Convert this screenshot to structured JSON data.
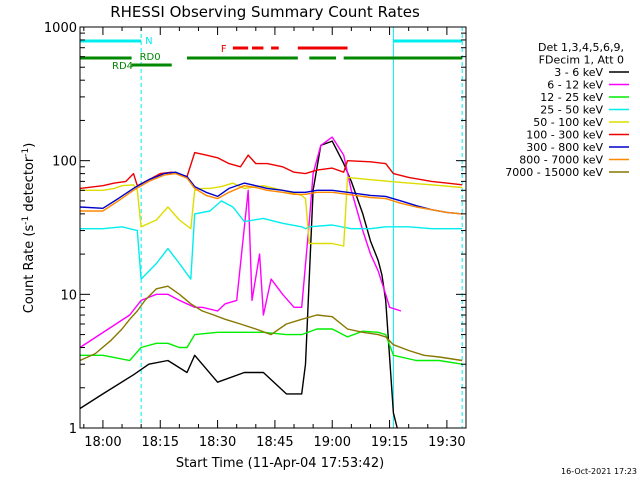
{
  "chart_data": {
    "type": "line",
    "title": "RHESSI Observing Summary Count Rates",
    "xlabel": "Start Time (11-Apr-04 17:53:42)",
    "ylabel_main": "Count Rate (s",
    "ylabel_sup1": "-1",
    "ylabel_mid": " detector",
    "ylabel_sup2": "-1",
    "ylabel_end": ")",
    "y_log": true,
    "xlim_minutes": [
      -6,
      95
    ],
    "ylim": [
      1,
      1000
    ],
    "x_ticks": [
      {
        "m": 0,
        "label": "18:00"
      },
      {
        "m": 15,
        "label": "18:15"
      },
      {
        "m": 30,
        "label": "18:30"
      },
      {
        "m": 45,
        "label": "18:45"
      },
      {
        "m": 60,
        "label": "19:00"
      },
      {
        "m": 75,
        "label": "19:15"
      },
      {
        "m": 90,
        "label": "19:30"
      }
    ],
    "y_ticks": [
      {
        "v": 1,
        "label": "1"
      },
      {
        "v": 10,
        "label": "10"
      },
      {
        "v": 100,
        "label": "100"
      },
      {
        "v": 1000,
        "label": "1000"
      }
    ],
    "legend_header": [
      "Det 1,3,4,5,6,9,",
      "FDecim 1, Att 0"
    ],
    "legend_placement": "right",
    "series": [
      {
        "name": "3 - 6 keV",
        "color": "#000000",
        "points": [
          [
            -6,
            1.4
          ],
          [
            0,
            1.8
          ],
          [
            8,
            2.5
          ],
          [
            12,
            3.0
          ],
          [
            17,
            3.2
          ],
          [
            22,
            2.6
          ],
          [
            24,
            3.5
          ],
          [
            30,
            2.2
          ],
          [
            37,
            2.6
          ],
          [
            42,
            2.6
          ],
          [
            48,
            1.8
          ],
          [
            52,
            1.8
          ],
          [
            53,
            3
          ],
          [
            55,
            60
          ],
          [
            57,
            130
          ],
          [
            60,
            140
          ],
          [
            63,
            95
          ],
          [
            65,
            70
          ],
          [
            68,
            40
          ],
          [
            70,
            25
          ],
          [
            72,
            18
          ],
          [
            73,
            14
          ],
          [
            74,
            9
          ],
          [
            76,
            1.3
          ],
          [
            77,
            1
          ]
        ]
      },
      {
        "name": "6 - 12 keV",
        "color": "#ff00ff",
        "points": [
          [
            -6,
            4
          ],
          [
            7,
            7
          ],
          [
            10,
            9
          ],
          [
            14,
            10
          ],
          [
            17,
            10
          ],
          [
            20,
            9
          ],
          [
            22,
            8.5
          ],
          [
            24,
            8
          ],
          [
            26,
            8
          ],
          [
            30,
            7.5
          ],
          [
            32,
            8.5
          ],
          [
            35,
            9
          ],
          [
            38,
            60
          ],
          [
            39,
            9
          ],
          [
            41,
            20
          ],
          [
            42,
            7
          ],
          [
            44,
            13
          ],
          [
            47,
            10
          ],
          [
            50,
            8
          ],
          [
            52,
            8
          ],
          [
            54,
            35
          ],
          [
            55,
            80
          ],
          [
            57,
            130
          ],
          [
            60,
            150
          ],
          [
            63,
            110
          ],
          [
            65,
            60
          ],
          [
            68,
            30
          ],
          [
            70,
            20
          ],
          [
            72,
            15
          ],
          [
            74,
            10
          ],
          [
            75,
            8
          ],
          [
            78,
            7.5
          ]
        ]
      },
      {
        "name": "12 - 25 keV",
        "color": "#00ee00",
        "points": [
          [
            -6,
            3.5
          ],
          [
            0,
            3.5
          ],
          [
            7,
            3.2
          ],
          [
            10,
            4.0
          ],
          [
            14,
            4.3
          ],
          [
            17,
            4.3
          ],
          [
            20,
            4.0
          ],
          [
            22,
            4.0
          ],
          [
            24,
            5
          ],
          [
            30,
            5.2
          ],
          [
            36,
            5.2
          ],
          [
            42,
            5.2
          ],
          [
            48,
            5.0
          ],
          [
            52,
            5.0
          ],
          [
            56,
            5.5
          ],
          [
            60,
            5.5
          ],
          [
            64,
            4.8
          ],
          [
            68,
            5.3
          ],
          [
            72,
            5.2
          ],
          [
            74,
            5.0
          ],
          [
            76,
            3.5
          ],
          [
            82,
            3.2
          ],
          [
            88,
            3.2
          ],
          [
            94,
            3.0
          ]
        ]
      },
      {
        "name": "25 - 50 keV",
        "color": "#00eeee",
        "points": [
          [
            -6,
            31
          ],
          [
            0,
            31
          ],
          [
            5,
            32
          ],
          [
            9,
            30
          ],
          [
            10,
            13
          ],
          [
            14,
            17
          ],
          [
            17,
            22
          ],
          [
            20,
            17
          ],
          [
            23,
            13
          ],
          [
            24,
            40
          ],
          [
            28,
            42
          ],
          [
            31,
            50
          ],
          [
            34,
            45
          ],
          [
            37,
            35
          ],
          [
            42,
            37
          ],
          [
            47,
            34
          ],
          [
            52,
            32
          ],
          [
            53,
            31
          ],
          [
            54,
            32
          ],
          [
            60,
            33
          ],
          [
            65,
            31
          ],
          [
            70,
            31
          ],
          [
            74,
            32
          ],
          [
            80,
            32
          ],
          [
            86,
            31
          ],
          [
            94,
            31
          ]
        ]
      },
      {
        "name": "50 - 100 keV",
        "color": "#dddd00",
        "points": [
          [
            -6,
            60
          ],
          [
            0,
            60
          ],
          [
            3,
            62
          ],
          [
            5,
            65
          ],
          [
            8,
            66
          ],
          [
            9,
            60
          ],
          [
            10,
            32
          ],
          [
            14,
            36
          ],
          [
            17,
            45
          ],
          [
            20,
            36
          ],
          [
            23,
            31
          ],
          [
            24,
            60
          ],
          [
            26,
            62
          ],
          [
            28,
            62
          ],
          [
            31,
            64
          ],
          [
            34,
            68
          ],
          [
            37,
            62
          ],
          [
            42,
            65
          ],
          [
            47,
            60
          ],
          [
            52,
            55
          ],
          [
            53,
            52
          ],
          [
            54,
            24
          ],
          [
            60,
            24
          ],
          [
            63,
            23
          ],
          [
            64,
            75
          ],
          [
            70,
            72
          ],
          [
            75,
            70
          ],
          [
            80,
            68
          ],
          [
            86,
            66
          ],
          [
            94,
            63
          ]
        ]
      },
      {
        "name": "100 - 300 keV",
        "color": "#ee0000",
        "points": [
          [
            -6,
            62
          ],
          [
            0,
            65
          ],
          [
            3,
            68
          ],
          [
            6,
            70
          ],
          [
            8,
            80
          ],
          [
            9,
            65
          ],
          [
            12,
            72
          ],
          [
            15,
            80
          ],
          [
            18,
            82
          ],
          [
            22,
            76
          ],
          [
            24,
            115
          ],
          [
            27,
            110
          ],
          [
            30,
            105
          ],
          [
            33,
            95
          ],
          [
            36,
            90
          ],
          [
            38,
            110
          ],
          [
            40,
            95
          ],
          [
            43,
            95
          ],
          [
            47,
            90
          ],
          [
            50,
            82
          ],
          [
            53,
            80
          ],
          [
            56,
            85
          ],
          [
            60,
            88
          ],
          [
            63,
            82
          ],
          [
            64,
            100
          ],
          [
            70,
            98
          ],
          [
            74,
            95
          ],
          [
            76,
            80
          ],
          [
            80,
            75
          ],
          [
            86,
            70
          ],
          [
            90,
            68
          ],
          [
            94,
            66
          ]
        ]
      },
      {
        "name": "300 - 800 keV",
        "color": "#0000cc",
        "points": [
          [
            -6,
            45
          ],
          [
            0,
            44
          ],
          [
            4,
            52
          ],
          [
            8,
            62
          ],
          [
            12,
            72
          ],
          [
            16,
            80
          ],
          [
            19,
            82
          ],
          [
            22,
            76
          ],
          [
            24,
            64
          ],
          [
            27,
            58
          ],
          [
            30,
            54
          ],
          [
            33,
            62
          ],
          [
            37,
            68
          ],
          [
            40,
            65
          ],
          [
            43,
            62
          ],
          [
            47,
            60
          ],
          [
            50,
            58
          ],
          [
            53,
            58
          ],
          [
            56,
            60
          ],
          [
            60,
            60
          ],
          [
            64,
            58
          ],
          [
            70,
            55
          ],
          [
            74,
            54
          ],
          [
            78,
            50
          ],
          [
            82,
            46
          ],
          [
            86,
            43
          ],
          [
            90,
            41
          ],
          [
            94,
            40
          ]
        ]
      },
      {
        "name": "800 - 7000 keV",
        "color": "#ff8800",
        "points": [
          [
            -6,
            42
          ],
          [
            0,
            42
          ],
          [
            4,
            50
          ],
          [
            8,
            60
          ],
          [
            12,
            70
          ],
          [
            16,
            78
          ],
          [
            19,
            80
          ],
          [
            22,
            74
          ],
          [
            24,
            62
          ],
          [
            27,
            55
          ],
          [
            30,
            52
          ],
          [
            33,
            58
          ],
          [
            37,
            65
          ],
          [
            40,
            63
          ],
          [
            43,
            60
          ],
          [
            47,
            58
          ],
          [
            50,
            56
          ],
          [
            53,
            56
          ],
          [
            56,
            58
          ],
          [
            60,
            58
          ],
          [
            64,
            56
          ],
          [
            70,
            53
          ],
          [
            74,
            52
          ],
          [
            78,
            48
          ],
          [
            82,
            45
          ],
          [
            86,
            43
          ],
          [
            90,
            41
          ],
          [
            94,
            40
          ]
        ]
      },
      {
        "name": "7000 - 15000 keV",
        "color": "#887700",
        "points": [
          [
            -6,
            3.2
          ],
          [
            -2,
            3.6
          ],
          [
            2,
            4.5
          ],
          [
            5,
            5.5
          ],
          [
            7,
            6.5
          ],
          [
            9,
            7.5
          ],
          [
            11,
            9
          ],
          [
            14,
            11
          ],
          [
            17,
            11.5
          ],
          [
            20,
            10
          ],
          [
            23,
            8.5
          ],
          [
            26,
            7.5
          ],
          [
            29,
            7
          ],
          [
            32,
            6.5
          ],
          [
            36,
            6
          ],
          [
            40,
            5.5
          ],
          [
            44,
            5
          ],
          [
            48,
            6
          ],
          [
            52,
            6.5
          ],
          [
            56,
            7
          ],
          [
            60,
            6.8
          ],
          [
            64,
            5.5
          ],
          [
            68,
            5.2
          ],
          [
            72,
            5
          ],
          [
            74,
            4.8
          ],
          [
            76,
            4.2
          ],
          [
            80,
            3.8
          ],
          [
            84,
            3.5
          ],
          [
            88,
            3.4
          ],
          [
            94,
            3.2
          ]
        ]
      }
    ],
    "annotations": {
      "night_label": "N",
      "flare_label": "F",
      "rd0_label": "RD0",
      "rd4_label": "RD4",
      "night_segments": [
        [
          -6,
          10
        ],
        [
          76,
          94
        ]
      ],
      "flare_segments": [
        [
          34,
          38
        ],
        [
          39,
          42
        ],
        [
          44,
          46
        ],
        [
          51,
          64
        ]
      ],
      "rd0_segments": [
        [
          -6,
          7.5
        ],
        [
          22,
          51
        ],
        [
          54,
          61
        ],
        [
          63,
          94
        ]
      ],
      "rd4_segments": [
        [
          7.5,
          18
        ]
      ],
      "night_solid_lines": [
        -6,
        76
      ],
      "night_dashed_lines": [
        10,
        94
      ],
      "colors": {
        "night": "#00eeee",
        "flare": "#ee0000",
        "rd": "#008800"
      }
    },
    "grid": false
  },
  "footer_date": "16-Oct-2021 17:23"
}
